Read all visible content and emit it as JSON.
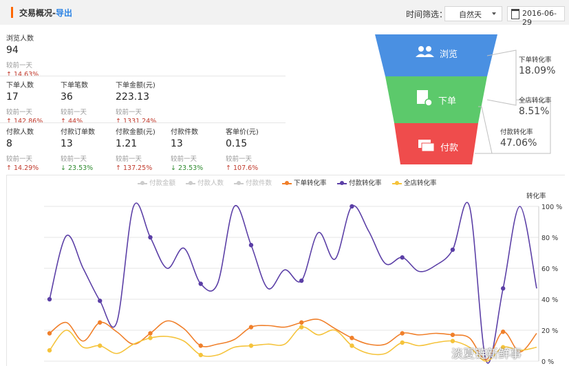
{
  "header": {
    "title": "交易概况-",
    "export": "导出",
    "filter_label": "时间筛选：",
    "select_value": "自然天",
    "date": "2016-06-29"
  },
  "metrics": {
    "browse": {
      "label": "浏览人数",
      "value": "94",
      "prev": "较前一天",
      "change": "↑ 14.63%"
    },
    "order_users": {
      "label": "下单人数",
      "value": "17",
      "prev": "较前一天",
      "change": "↑ 142.86%"
    },
    "order_count": {
      "label": "下单笔数",
      "value": "36",
      "prev": "较前一天",
      "change": "↑ 44%"
    },
    "order_amount": {
      "label": "下单金额(元)",
      "value": "223.13",
      "prev": "较前一天",
      "change": "↑ 1331.24%"
    },
    "pay_users": {
      "label": "付款人数",
      "value": "8",
      "prev": "较前一天",
      "change": "↑ 14.29%"
    },
    "pay_orders": {
      "label": "付款订单数",
      "value": "13",
      "prev": "较前一天",
      "change": "↓ 23.53%"
    },
    "pay_amount": {
      "label": "付款金额(元)",
      "value": "1.21",
      "prev": "较前一天",
      "change": "↑ 137.25%"
    },
    "pay_items": {
      "label": "付款件数",
      "value": "13",
      "prev": "较前一天",
      "change": "↓ 23.53%"
    },
    "unit_price": {
      "label": "客单价(元)",
      "value": "0.15",
      "prev": "较前一天",
      "change": "↑ 107.6%"
    }
  },
  "funnel": {
    "browse": "浏览",
    "order": "下单",
    "pay": "付款",
    "colors": {
      "browse": "#4a90e2",
      "order": "#5cc96b",
      "pay": "#ef4c4c"
    },
    "rates": [
      {
        "label": "下单转化率",
        "value": "18.09%"
      },
      {
        "label": "全店转化率",
        "value": "8.51%"
      },
      {
        "label": "付款转化率",
        "value": "47.06%"
      }
    ]
  },
  "chart_data": {
    "type": "line",
    "legend": [
      {
        "name": "付款金额",
        "color": "#cccccc",
        "active": false
      },
      {
        "name": "付款人数",
        "color": "#cccccc",
        "active": false
      },
      {
        "name": "付款件数",
        "color": "#cccccc",
        "active": false
      },
      {
        "name": "下单转化率",
        "color": "#f07f2a",
        "active": true
      },
      {
        "name": "付款转化率",
        "color": "#5b3fa6",
        "active": true
      },
      {
        "name": "全店转化率",
        "color": "#f5c33b",
        "active": true
      }
    ],
    "y_right_label": "转化率",
    "y_ticks": [
      "100 %",
      "80 %",
      "60 %",
      "40 %",
      "20 %",
      "0 %"
    ],
    "ylim": [
      0,
      100
    ],
    "x_count": 30,
    "series": [
      {
        "name": "付款转化率",
        "color": "#5b3fa6",
        "values": [
          40,
          81,
          60,
          39,
          25,
          100,
          80,
          60,
          73,
          50,
          50,
          100,
          75,
          47,
          59,
          52,
          83,
          66,
          100,
          84,
          63,
          67,
          58,
          62,
          72,
          100,
          0,
          47,
          100,
          47
        ],
        "markers": [
          0,
          3,
          6,
          9,
          12,
          15,
          18,
          21,
          24,
          27
        ]
      },
      {
        "name": "下单转化率",
        "color": "#f07f2a",
        "values": [
          18,
          25,
          13,
          25,
          19,
          11,
          18,
          26,
          21,
          10,
          11,
          14,
          22,
          23,
          22,
          25,
          27,
          21,
          15,
          11,
          11,
          18,
          17,
          18,
          17,
          15,
          1,
          19,
          6,
          18
        ],
        "markers": [
          0,
          3,
          6,
          9,
          12,
          15,
          18,
          21,
          24,
          27
        ]
      },
      {
        "name": "全店转化率",
        "color": "#f5c33b",
        "values": [
          7,
          20,
          9,
          10,
          5,
          11,
          15,
          16,
          13,
          4,
          4,
          9,
          10,
          11,
          11,
          22,
          17,
          20,
          10,
          5,
          5,
          12,
          10,
          12,
          13,
          9,
          0,
          9,
          7,
          9
        ],
        "markers": [
          0,
          3,
          6,
          9,
          12,
          15,
          18,
          21,
          24,
          27
        ]
      }
    ]
  },
  "watermark": "淡夏链新鲜事"
}
